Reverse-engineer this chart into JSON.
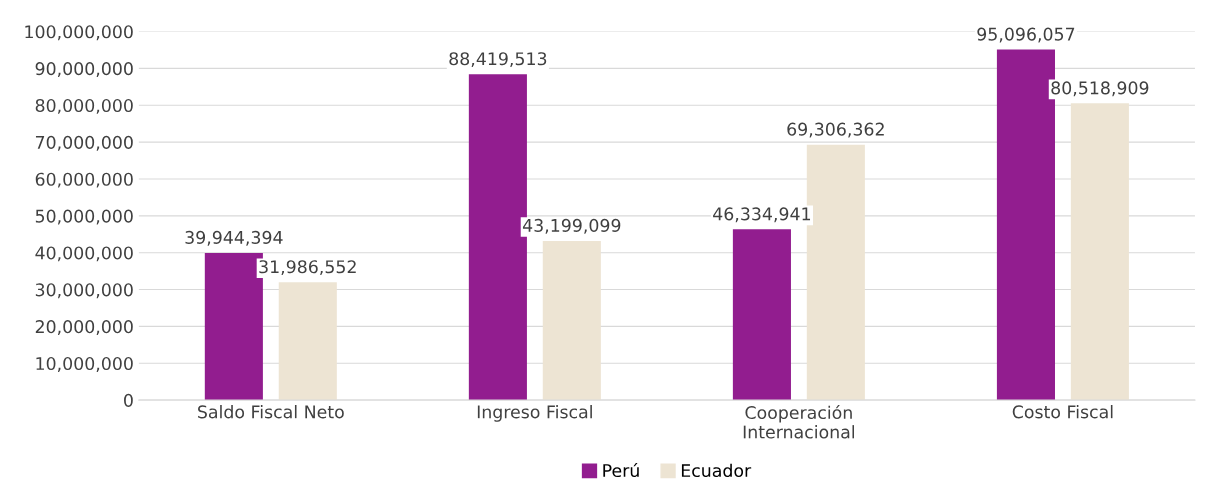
{
  "chart_data": {
    "type": "bar",
    "categories": [
      "Saldo Fiscal Neto",
      "Ingreso Fiscal",
      "Cooperación Internacional",
      "Costo Fiscal"
    ],
    "series": [
      {
        "name": "Perú",
        "color": "#921d8f",
        "values": [
          39944394,
          88419513,
          46334941,
          95096057
        ],
        "value_labels": [
          "39,944,394",
          "88,419,513",
          "46,334,941",
          "95,096,057"
        ]
      },
      {
        "name": "Ecuador",
        "color": "#ede4d3",
        "values": [
          31986552,
          43199099,
          69306362,
          80518909
        ],
        "value_labels": [
          "31,986,552",
          "43,199,099",
          "69,306,362",
          "80,518,909"
        ]
      }
    ],
    "ylim": [
      0,
      100000000
    ],
    "yticks": [
      {
        "value": 0,
        "label": "0"
      },
      {
        "value": 10000000,
        "label": "10,000,000"
      },
      {
        "value": 20000000,
        "label": "20,000,000"
      },
      {
        "value": 30000000,
        "label": "30,000,000"
      },
      {
        "value": 40000000,
        "label": "40,000,000"
      },
      {
        "value": 50000000,
        "label": "50,000,000"
      },
      {
        "value": 60000000,
        "label": "60,000,000"
      },
      {
        "value": 70000000,
        "label": "70,000,000"
      },
      {
        "value": 80000000,
        "label": "80,000,000"
      },
      {
        "value": 90000000,
        "label": "90,000,000"
      },
      {
        "value": 100000000,
        "label": "100,000,000"
      }
    ],
    "grid": "y",
    "legend": "bottom"
  }
}
